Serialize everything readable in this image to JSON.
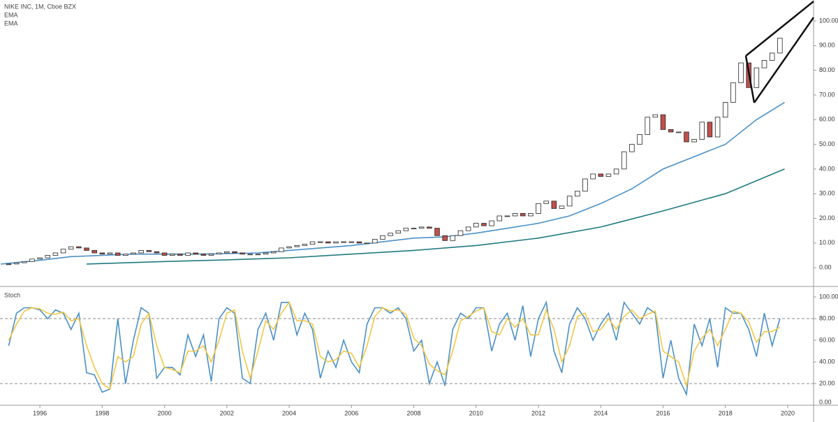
{
  "chart_data": {
    "type": "candlestick",
    "title": "NIKE INC, 1M, Cboe BZX",
    "xlim": [
      1994.72,
      2020.83
    ],
    "xticks": [
      1996,
      1998,
      2000,
      2002,
      2004,
      2006,
      2008,
      2010,
      2012,
      2014,
      2016,
      2018,
      2020
    ],
    "ylim": [
      -7.6,
      108.5
    ],
    "yticks": [
      {
        "value": 0,
        "label": "0.00"
      },
      {
        "value": 10,
        "label": "10.00"
      },
      {
        "value": 20,
        "label": "20.00"
      },
      {
        "value": 30,
        "label": "30.00"
      },
      {
        "value": 40,
        "label": "40.00"
      },
      {
        "value": 50,
        "label": "50.00"
      },
      {
        "value": 60,
        "label": "60.00"
      },
      {
        "value": 70,
        "label": "70.00"
      },
      {
        "value": 80,
        "label": "80.00"
      },
      {
        "value": 90,
        "label": "90.00"
      },
      {
        "value": 100,
        "label": "100.00"
      }
    ],
    "up_color": "#ffffff",
    "down_color": "#c0504d",
    "x": [
      1995,
      1995.25,
      1995.5,
      1995.75,
      1996,
      1996.25,
      1996.5,
      1996.75,
      1997,
      1997.25,
      1997.5,
      1997.75,
      1998,
      1998.25,
      1998.5,
      1998.75,
      1999,
      1999.25,
      1999.5,
      1999.75,
      2000,
      2000.25,
      2000.5,
      2000.75,
      2001,
      2001.25,
      2001.5,
      2001.75,
      2002,
      2002.25,
      2002.5,
      2002.75,
      2003,
      2003.25,
      2003.5,
      2003.75,
      2004,
      2004.25,
      2004.5,
      2004.75,
      2005,
      2005.25,
      2005.5,
      2005.75,
      2006,
      2006.25,
      2006.5,
      2006.75,
      2007,
      2007.25,
      2007.5,
      2007.75,
      2008,
      2008.25,
      2008.5,
      2008.75,
      2009,
      2009.25,
      2009.5,
      2009.75,
      2010,
      2010.25,
      2010.5,
      2010.75,
      2011,
      2011.25,
      2011.5,
      2011.75,
      2012,
      2012.25,
      2012.5,
      2012.75,
      2013,
      2013.25,
      2013.5,
      2013.75,
      2014,
      2014.25,
      2014.5,
      2014.75,
      2015,
      2015.25,
      2015.5,
      2015.75,
      2016,
      2016.25,
      2016.5,
      2016.75,
      2017,
      2017.25,
      2017.5,
      2017.75,
      2018,
      2018.25,
      2018.5,
      2018.75,
      2019,
      2019.25,
      2019.5,
      2019.75
    ],
    "close": [
      1.5,
      2,
      2.5,
      3.5,
      4,
      5,
      6,
      7.5,
      8.5,
      8,
      7,
      6,
      5.5,
      6,
      5,
      5.5,
      6,
      7,
      6.5,
      6,
      5,
      5.5,
      5,
      6,
      5.5,
      5,
      5.5,
      6,
      6.5,
      6,
      5.5,
      5.5,
      5.5,
      6,
      6.5,
      8,
      8.5,
      9,
      9.5,
      10.5,
      10.5,
      10,
      10.5,
      10.5,
      10.5,
      10,
      10,
      11.5,
      13,
      14,
      15,
      16,
      16,
      16.5,
      16,
      13,
      11,
      13,
      15,
      16.5,
      18,
      17,
      19,
      21,
      21,
      22,
      21,
      22,
      26,
      27,
      24,
      25,
      29,
      31,
      36,
      38,
      37,
      38,
      40,
      47,
      50,
      54,
      61,
      62,
      56,
      55,
      55,
      51,
      52,
      59,
      53,
      61,
      67,
      75,
      83,
      73,
      81,
      84,
      87,
      93
    ],
    "series": [
      {
        "name": "EMA",
        "color": "#4a90c8",
        "x": [
          1994.75,
          1996,
          1997,
          1998,
          1999,
          2000,
          2001,
          2002,
          2003,
          2004,
          2005,
          2006,
          2007,
          2008,
          2009,
          2010,
          2011,
          2012,
          2013,
          2014,
          2015,
          2016,
          2017,
          2018,
          2019,
          2019.9
        ],
        "values": [
          1.5,
          3,
          4.5,
          5,
          5.5,
          5.5,
          5.5,
          5.7,
          6,
          7,
          8,
          9,
          10.5,
          12,
          12.5,
          14,
          16,
          18,
          21,
          26,
          32,
          40,
          45,
          50,
          60,
          67
        ]
      },
      {
        "name": "EMA",
        "color": "#1f7a80",
        "x": [
          1997.5,
          1998,
          2000,
          2002,
          2004,
          2006,
          2008,
          2010,
          2012,
          2014,
          2016,
          2018,
          2019.9
        ],
        "values": [
          1.5,
          1.7,
          2.5,
          3.2,
          4,
          5.5,
          7,
          9,
          12,
          16.5,
          23,
          30,
          40
        ]
      }
    ],
    "stoch": {
      "title": "Stoch",
      "ylim": [
        0,
        109.7
      ],
      "yticks": [
        {
          "value": 0,
          "label": "0.00"
        },
        {
          "value": 20,
          "label": "20.00"
        },
        {
          "value": 40,
          "label": "40.00"
        },
        {
          "value": 60,
          "label": "60.00"
        },
        {
          "value": 80,
          "label": "80.00"
        },
        {
          "value": 100,
          "label": "100.00"
        }
      ],
      "bands": [
        20,
        80
      ],
      "series": [
        {
          "color": "#4a90c8",
          "values": [
            55,
            85,
            90,
            90,
            88,
            80,
            88,
            85,
            70,
            85,
            30,
            28,
            12,
            15,
            80,
            20,
            60,
            90,
            85,
            25,
            35,
            35,
            28,
            65,
            45,
            65,
            22,
            80,
            90,
            85,
            25,
            20,
            70,
            85,
            60,
            95,
            95,
            65,
            85,
            70,
            25,
            50,
            35,
            60,
            40,
            30,
            75,
            90,
            90,
            85,
            90,
            80,
            50,
            60,
            20,
            40,
            18,
            70,
            85,
            80,
            90,
            90,
            50,
            75,
            85,
            60,
            92,
            45,
            80,
            95,
            50,
            30,
            75,
            90,
            80,
            60,
            75,
            85,
            60,
            95,
            85,
            75,
            90,
            85,
            25,
            60,
            25,
            10,
            75,
            55,
            80,
            35,
            90,
            85,
            85,
            70,
            45,
            85,
            55,
            80
          ]
        },
        {
          "color": "#f2c744",
          "values": [
            60,
            75,
            87,
            90,
            89,
            85,
            84,
            86,
            78,
            80,
            55,
            35,
            20,
            15,
            45,
            40,
            45,
            75,
            85,
            55,
            35,
            33,
            30,
            50,
            50,
            55,
            40,
            60,
            85,
            88,
            50,
            25,
            50,
            78,
            70,
            85,
            95,
            78,
            78,
            75,
            45,
            40,
            42,
            50,
            48,
            35,
            55,
            82,
            90,
            87,
            88,
            84,
            62,
            55,
            38,
            32,
            28,
            50,
            78,
            82,
            87,
            90,
            68,
            65,
            80,
            72,
            80,
            65,
            65,
            88,
            70,
            40,
            55,
            82,
            85,
            68,
            70,
            80,
            70,
            82,
            88,
            80,
            84,
            87,
            50,
            45,
            40,
            18,
            50,
            62,
            70,
            55,
            70,
            87,
            85,
            77,
            58,
            68,
            68,
            72
          ]
        }
      ]
    }
  }
}
